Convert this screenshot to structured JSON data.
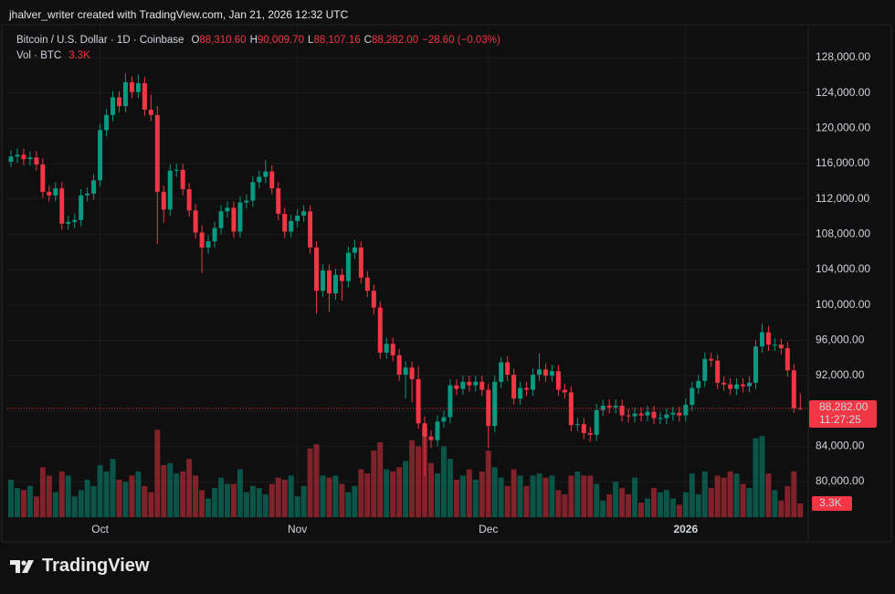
{
  "header": {
    "attribution": "jhalver_writer created with TradingView.com, Jan 21, 2026 12:32 UTC"
  },
  "chart_data": {
    "type": "candlestick",
    "legend": {
      "symbol": "Bitcoin / U.S. Dollar · 1D · Coinbase",
      "fields": [
        {
          "key": "O",
          "value": "88,310.60"
        },
        {
          "key": "H",
          "value": "90,009.70"
        },
        {
          "key": "L",
          "value": "88,107.16"
        },
        {
          "key": "C",
          "value": "88,282.00"
        }
      ],
      "change": "−28.60 (−0.03%)",
      "volume_title": "Vol · BTC",
      "volume": "3.3K"
    },
    "categories": [
      null,
      null,
      null,
      null,
      null,
      null,
      null,
      null,
      null,
      null,
      null,
      null,
      null,
      null,
      "Oct",
      null,
      null,
      null,
      null,
      null,
      null,
      null,
      null,
      null,
      null,
      null,
      null,
      null,
      null,
      null,
      null,
      null,
      null,
      null,
      null,
      null,
      null,
      null,
      null,
      null,
      null,
      null,
      null,
      null,
      null,
      "Nov",
      null,
      null,
      null,
      null,
      null,
      null,
      null,
      null,
      null,
      null,
      null,
      null,
      null,
      null,
      null,
      null,
      null,
      null,
      null,
      null,
      null,
      null,
      null,
      null,
      null,
      null,
      null,
      null,
      null,
      "Dec",
      null,
      null,
      null,
      null,
      null,
      null,
      null,
      null,
      null,
      null,
      null,
      null,
      null,
      null,
      null,
      null,
      null,
      null,
      null,
      null,
      null,
      null,
      null,
      null,
      null,
      null,
      null,
      null,
      null,
      null,
      "2026",
      null,
      null,
      null,
      null,
      null,
      null,
      null,
      null,
      null,
      null,
      null,
      null,
      null,
      null,
      null,
      null,
      null,
      null
    ],
    "open": [
      116200,
      116800,
      117000,
      116500,
      116700,
      115900,
      112800,
      112400,
      113200,
      109200,
      109400,
      109600,
      112400,
      112600,
      114100,
      119800,
      121500,
      123500,
      122500,
      125200,
      124100,
      125100,
      122100,
      121500,
      112800,
      110800,
      115200,
      115300,
      113100,
      110700,
      108200,
      106500,
      107200,
      108700,
      110600,
      111000,
      108300,
      111600,
      111800,
      113900,
      114500,
      115100,
      113200,
      110300,
      108300,
      109500,
      110100,
      110600,
      106500,
      101600,
      103900,
      101300,
      103400,
      102700,
      105900,
      106500,
      103100,
      101600,
      99700,
      94600,
      95600,
      94300,
      92100,
      92900,
      91600,
      86600,
      85100,
      84700,
      86800,
      87300,
      90900,
      90500,
      91300,
      90900,
      91300,
      90400,
      86300,
      91300,
      93500,
      92100,
      89400,
      90600,
      90400,
      92100,
      92700,
      92000,
      92500,
      90400,
      90100,
      86400,
      86500,
      85500,
      85300,
      88100,
      88600,
      88400,
      88600,
      87500,
      87400,
      87700,
      87500,
      87900,
      87200,
      87200,
      87600,
      87800,
      87500,
      88700,
      90600,
      91400,
      93900,
      93700,
      91200,
      91000,
      90500,
      91000,
      90800,
      91200,
      95300,
      96900,
      95500,
      95500,
      95100,
      92600,
      88310.6
    ],
    "high": [
      117500,
      117700,
      117700,
      117400,
      117400,
      116600,
      113500,
      113900,
      113900,
      110100,
      110300,
      113100,
      113300,
      114800,
      120500,
      122200,
      124200,
      124200,
      126200,
      125900,
      126100,
      125800,
      123800,
      122500,
      113500,
      115900,
      116000,
      116000,
      113800,
      111400,
      109000,
      107900,
      109400,
      111300,
      111700,
      111700,
      112300,
      112500,
      114600,
      115200,
      116400,
      115800,
      113900,
      111000,
      110200,
      110800,
      111300,
      111300,
      107200,
      104600,
      104600,
      104100,
      104100,
      106600,
      107400,
      107200,
      103800,
      102300,
      100400,
      96300,
      96300,
      95000,
      93600,
      93600,
      93100,
      87400,
      85800,
      87500,
      88000,
      91600,
      91600,
      92000,
      92000,
      92000,
      92000,
      91100,
      92000,
      94100,
      94200,
      92800,
      91300,
      91300,
      92800,
      94500,
      93400,
      93200,
      93200,
      91100,
      90800,
      87200,
      87200,
      86200,
      88800,
      89300,
      89300,
      89300,
      89300,
      88200,
      88400,
      88400,
      88600,
      88600,
      87900,
      88300,
      88500,
      88500,
      89400,
      91300,
      92100,
      94600,
      94600,
      94400,
      91900,
      91700,
      91700,
      91700,
      91900,
      96000,
      97900,
      97600,
      96200,
      96200,
      95800,
      93300,
      90009.7
    ],
    "low": [
      115600,
      116100,
      115800,
      115800,
      115200,
      112100,
      111700,
      111700,
      108500,
      108500,
      108700,
      108900,
      111700,
      111900,
      113400,
      119100,
      120800,
      121800,
      121800,
      123400,
      123400,
      121400,
      120800,
      106900,
      109300,
      110100,
      114500,
      112400,
      110000,
      107500,
      103600,
      105800,
      106500,
      108000,
      109900,
      107600,
      107600,
      110900,
      111100,
      113200,
      113800,
      112500,
      109600,
      107600,
      107600,
      108800,
      109400,
      105800,
      99000,
      100900,
      99200,
      100600,
      100500,
      102000,
      105200,
      102400,
      100900,
      98900,
      93900,
      93900,
      93600,
      91400,
      89400,
      89000,
      86000,
      80600,
      83800,
      84000,
      86100,
      86600,
      89800,
      89800,
      90200,
      90200,
      89700,
      83800,
      85600,
      90600,
      91400,
      88700,
      88700,
      89700,
      89700,
      91400,
      91300,
      91300,
      89700,
      89400,
      85700,
      85700,
      84800,
      84500,
      84600,
      87400,
      87700,
      87700,
      86800,
      86700,
      86700,
      86800,
      86800,
      86500,
      86500,
      86500,
      86900,
      86800,
      86800,
      88000,
      89900,
      90700,
      93000,
      90500,
      90300,
      89800,
      89800,
      90100,
      90100,
      90500,
      94600,
      94800,
      94800,
      94400,
      91900,
      87800,
      88107.16
    ],
    "close": [
      116800,
      117000,
      116500,
      116700,
      115900,
      112800,
      112400,
      113200,
      109200,
      109400,
      109600,
      112400,
      112600,
      114100,
      119800,
      121500,
      123500,
      122500,
      125200,
      124100,
      125100,
      122100,
      121500,
      112800,
      110800,
      115200,
      115300,
      113100,
      110700,
      108200,
      106500,
      107200,
      108700,
      110600,
      111000,
      108300,
      111600,
      111800,
      113900,
      114500,
      115100,
      113200,
      110300,
      108300,
      109500,
      110100,
      110600,
      106500,
      101600,
      103900,
      101300,
      103400,
      102700,
      105900,
      106500,
      103100,
      101600,
      99700,
      94600,
      95600,
      94300,
      92100,
      92900,
      91600,
      86600,
      85100,
      84700,
      86800,
      87300,
      90900,
      90500,
      91300,
      90900,
      91300,
      90400,
      86300,
      91300,
      93500,
      92100,
      89400,
      90600,
      90400,
      92100,
      92700,
      92000,
      92500,
      90400,
      90100,
      86400,
      86500,
      85500,
      85300,
      88100,
      88600,
      88400,
      88600,
      87500,
      87400,
      87700,
      87500,
      87900,
      87200,
      87200,
      87600,
      87800,
      87500,
      88700,
      90600,
      91400,
      93900,
      93700,
      91200,
      91000,
      90500,
      91000,
      90800,
      91200,
      95300,
      96900,
      95500,
      95500,
      95100,
      92600,
      88310.6,
      88282
    ],
    "volume": [
      9000,
      7000,
      6500,
      7500,
      5000,
      12000,
      10000,
      6000,
      11000,
      10000,
      5000,
      6500,
      9000,
      7500,
      12500,
      11000,
      14000,
      9000,
      8500,
      10000,
      11000,
      7500,
      6000,
      21000,
      12500,
      13000,
      10500,
      11000,
      14000,
      10000,
      6500,
      4500,
      7000,
      9500,
      8000,
      8000,
      11500,
      6000,
      7500,
      7000,
      5500,
      8000,
      9500,
      9000,
      10000,
      5000,
      7500,
      16500,
      17500,
      10000,
      9500,
      10000,
      8000,
      6000,
      7500,
      11500,
      10500,
      16000,
      18000,
      11500,
      11000,
      12000,
      13500,
      18500,
      17000,
      21500,
      13000,
      10500,
      17000,
      14000,
      9000,
      10000,
      11500,
      9000,
      11000,
      16000,
      12000,
      9500,
      7500,
      11500,
      10000,
      7500,
      10000,
      10500,
      9500,
      10000,
      6500,
      5500,
      10000,
      11000,
      10000,
      10000,
      8000,
      4000,
      5500,
      8500,
      7000,
      5500,
      9500,
      3500,
      4500,
      7000,
      6000,
      6500,
      4500,
      3000,
      6000,
      10500,
      5500,
      11000,
      7000,
      10000,
      9500,
      11000,
      10500,
      8000,
      7000,
      19000,
      19500,
      10500,
      6500,
      4000,
      7500,
      11000,
      3300
    ],
    "up_color": "#089981",
    "down_color": "#f23645",
    "ylim": [
      75970,
      131620
    ],
    "yticks": [
      {
        "value": 80000,
        "label": "80,000.00"
      },
      {
        "value": 84000,
        "label": "84,000.00"
      },
      {
        "value": 88000,
        "label": "88,000.00"
      },
      {
        "value": 92000,
        "label": "92,000.00"
      },
      {
        "value": 96000,
        "label": "96,000.00"
      },
      {
        "value": 100000,
        "label": "100,000.00"
      },
      {
        "value": 104000,
        "label": "104,000.00"
      },
      {
        "value": 108000,
        "label": "108,000.00"
      },
      {
        "value": 112000,
        "label": "112,000.00"
      },
      {
        "value": 116000,
        "label": "116,000.00"
      },
      {
        "value": 120000,
        "label": "120,000.00"
      },
      {
        "value": 124000,
        "label": "124,000.00"
      },
      {
        "value": 128000,
        "label": "128,000.00"
      }
    ],
    "y2lim": [
      0,
      118000
    ],
    "grid": true,
    "price_tag": "88,282.00",
    "countdown": "11:27:25"
  },
  "footer": {
    "logo": "TradingView"
  }
}
